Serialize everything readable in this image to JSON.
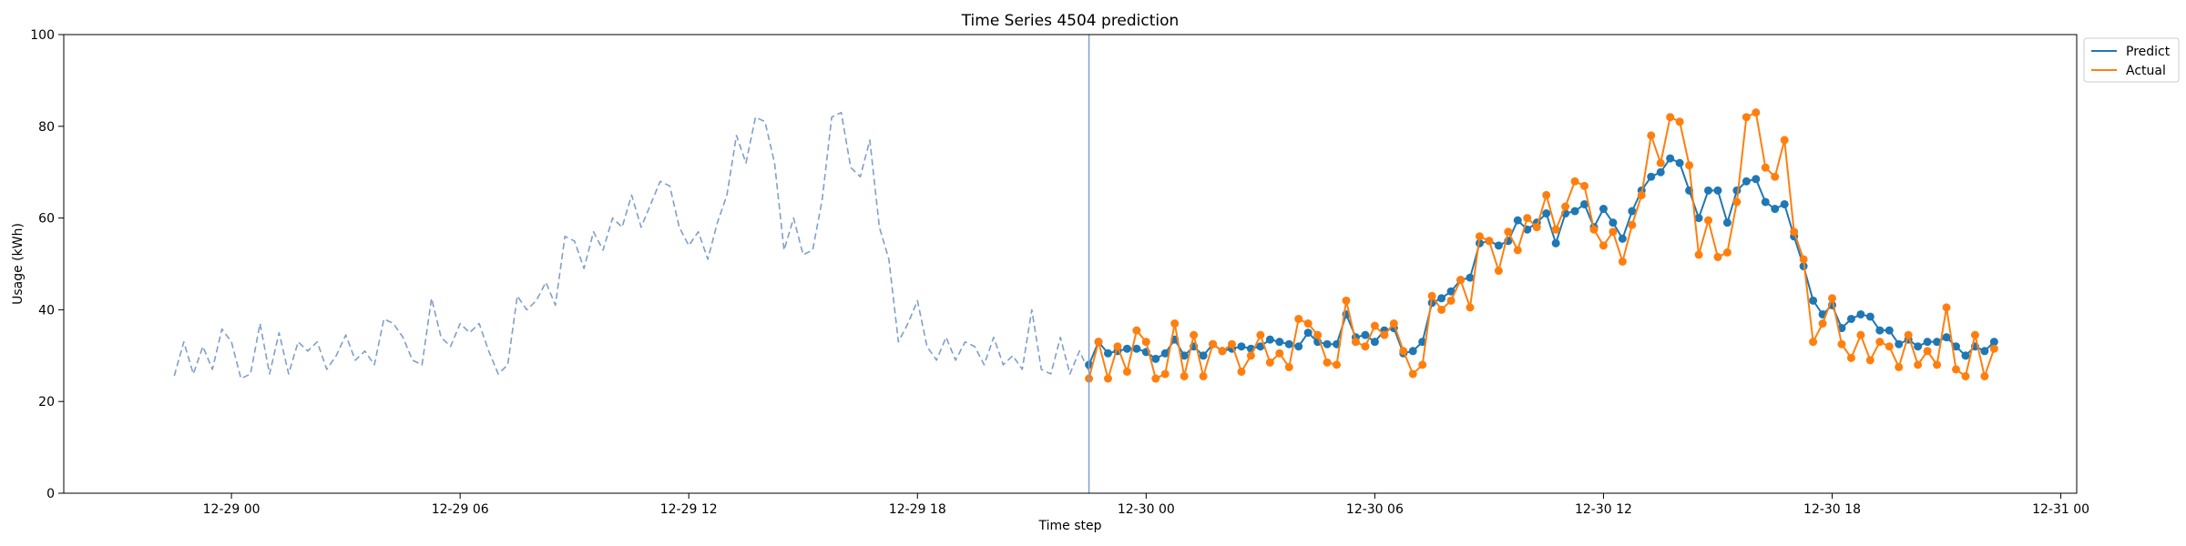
{
  "chart_data": {
    "type": "line",
    "title": "Time Series 4504 prediction",
    "xlabel": "Time step",
    "ylabel": "Usage (kWh)",
    "ylim": [
      0,
      100
    ],
    "yticks": [
      0,
      20,
      40,
      60,
      80,
      100
    ],
    "xlim": [
      "2021-12-28T19:36",
      "2021-12-31T00:25"
    ],
    "xticks": [
      {
        "x": "2021-12-29T00:00",
        "label": "12-29 00"
      },
      {
        "x": "2021-12-29T06:00",
        "label": "12-29 06"
      },
      {
        "x": "2021-12-29T12:00",
        "label": "12-29 12"
      },
      {
        "x": "2021-12-29T18:00",
        "label": "12-29 18"
      },
      {
        "x": "2021-12-30T00:00",
        "label": "12-30 00"
      },
      {
        "x": "2021-12-30T06:00",
        "label": "12-30 06"
      },
      {
        "x": "2021-12-30T12:00",
        "label": "12-30 12"
      },
      {
        "x": "2021-12-30T18:00",
        "label": "12-30 18"
      },
      {
        "x": "2021-12-31T00:00",
        "label": "12-31 00"
      }
    ],
    "grid": false,
    "legend": "outside-top-right",
    "frequency": "15min",
    "forecast_start": "2021-12-29T22:30",
    "colors": {
      "history": "#7f9fcb",
      "predict": "#1f77b4",
      "actual": "#ff7f0e",
      "divider": "#7f9fcb"
    },
    "series": [
      {
        "role": "history",
        "start": "2021-12-28T22:30",
        "values": [
          25.6,
          33.0,
          26.0,
          32.0,
          27.0,
          35.8,
          33.0,
          25.0,
          26.0,
          37.0,
          26.0,
          35.0,
          26.0,
          33.0,
          31.0,
          33.0,
          27.0,
          30.0,
          34.5,
          29.0,
          31.0,
          28.0,
          38.0,
          37.0,
          34.0,
          29.0,
          28.0,
          42.5,
          34.0,
          32.0,
          37.0,
          35.0,
          37.0,
          31.0,
          26.0,
          28.0,
          43.0,
          40.0,
          42.0,
          46.0,
          41.0,
          56.0,
          55.0,
          49.0,
          57.0,
          53.0,
          60.0,
          58.0,
          65.0,
          58.0,
          63.0,
          68.0,
          67.0,
          58.0,
          54.0,
          57.0,
          51.0,
          59.0,
          65.0,
          78.0,
          72.0,
          82.0,
          81.0,
          72.0,
          53.0,
          60.0,
          52.0,
          53.0,
          64.0,
          82.0,
          83.0,
          71.0,
          69.0,
          77.0,
          58.0,
          51.0,
          33.0,
          37.0,
          42.0,
          32.0,
          29.0,
          34.0,
          29.0,
          33.0,
          32.0,
          28.0,
          34.0,
          28.0,
          30.0,
          27.0,
          40.0,
          27.0,
          26.0,
          34.0,
          26.0,
          31.0,
          26.6
        ]
      },
      {
        "name": "Predict",
        "role": "prediction",
        "start": "2021-12-29T22:30",
        "values": [
          28.0,
          33.0,
          30.5,
          31.0,
          31.5,
          31.5,
          30.8,
          29.3,
          30.5,
          33.5,
          30.0,
          32.0,
          30.0,
          32.5,
          31.0,
          31.5,
          32.0,
          31.5,
          32.0,
          33.5,
          33.0,
          32.5,
          32.0,
          35.0,
          33.0,
          32.5,
          32.5,
          39.0,
          34.0,
          34.5,
          33.0,
          35.5,
          36.0,
          30.5,
          31.0,
          33.0,
          41.5,
          42.5,
          44.0,
          46.5,
          47.0,
          54.5,
          55.0,
          54.0,
          55.0,
          59.5,
          57.5,
          59.0,
          61.0,
          54.5,
          61.0,
          61.5,
          63.0,
          58.0,
          62.0,
          59.0,
          55.5,
          61.5,
          66.0,
          69.0,
          70.0,
          73.0,
          72.0,
          66.0,
          60.0,
          66.0,
          66.0,
          59.0,
          66.0,
          68.0,
          68.5,
          63.5,
          62.0,
          63.0,
          56.0,
          49.5,
          42.0,
          39.0,
          41.0,
          36.0,
          38.0,
          39.0,
          38.5,
          35.5,
          35.5,
          32.5,
          33.5,
          32.0,
          33.0,
          33.0,
          34.0,
          32.0,
          30.0,
          32.0,
          31.0,
          33.0
        ]
      },
      {
        "name": "Actual",
        "role": "actual",
        "start": "2021-12-29T22:30",
        "values": [
          25.0,
          33.0,
          25.0,
          32.0,
          26.5,
          35.5,
          33.0,
          25.0,
          26.0,
          37.0,
          25.5,
          34.5,
          25.5,
          32.5,
          31.0,
          32.5,
          26.5,
          30.0,
          34.5,
          28.5,
          30.5,
          27.5,
          38.0,
          37.0,
          34.5,
          28.5,
          28.0,
          42.0,
          33.0,
          32.0,
          36.5,
          34.5,
          37.0,
          31.0,
          26.0,
          28.0,
          43.0,
          40.0,
          42.0,
          46.5,
          40.5,
          56.0,
          55.0,
          48.5,
          57.0,
          53.0,
          60.0,
          58.0,
          65.0,
          57.5,
          62.5,
          68.0,
          67.0,
          57.5,
          54.0,
          57.0,
          50.5,
          58.5,
          65.0,
          78.0,
          72.0,
          82.0,
          81.0,
          71.5,
          52.0,
          59.5,
          51.5,
          52.5,
          63.5,
          82.0,
          83.0,
          71.0,
          69.0,
          77.0,
          57.0,
          51.0,
          33.0,
          37.0,
          42.5,
          32.5,
          29.5,
          34.5,
          29.0,
          33.0,
          32.0,
          27.5,
          34.5,
          28.0,
          31.0,
          28.0,
          40.5,
          27.0,
          25.5,
          34.5,
          25.5,
          31.5
        ]
      }
    ]
  }
}
